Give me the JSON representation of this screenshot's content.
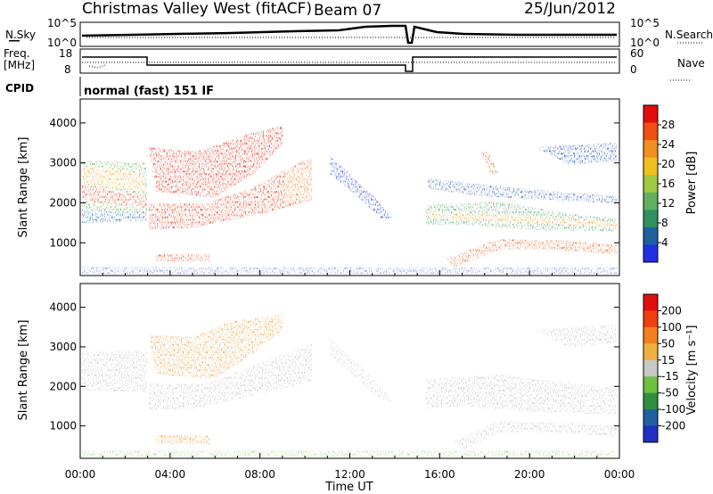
{
  "header": {
    "title": "Christmas Valley West (fitACF)",
    "beam": "Beam 07",
    "date": "25/Jun/2012"
  },
  "noise_panel": {
    "left_label": "N.Sky",
    "left_ticks": [
      "10^5",
      "10^0"
    ],
    "right_ticks": [
      "10^5",
      "10^0"
    ],
    "right_label": "N.Search"
  },
  "freq_panel": {
    "left_label_1": "Freq.",
    "left_label_2": "[MHz]",
    "left_ticks": [
      "18",
      "8"
    ],
    "right_ticks": [
      "60",
      "0"
    ],
    "right_label": "Nave"
  },
  "cpid": {
    "label": "CPID",
    "value": "normal (fast) 151 IF"
  },
  "chart_data": [
    {
      "type": "heatmap",
      "name": "power",
      "ylabel": "Slant Range [km]",
      "ylim": [
        180,
        4600
      ],
      "yticks": [
        1000,
        2000,
        3000,
        4000
      ],
      "xlim": [
        0,
        24
      ],
      "xticks": [
        "00:00",
        "04:00",
        "08:00",
        "12:00",
        "16:00",
        "20:00",
        "00:00"
      ],
      "colorbar_label": "Power [dB]",
      "colorbar_ticks": [
        "28",
        "24",
        "20",
        "16",
        "12",
        "8",
        "4"
      ],
      "colors": [
        "#2030e0",
        "#2060a0",
        "#309060",
        "#60b060",
        "#a0c840",
        "#f0c020",
        "#f09020",
        "#f05010",
        "#e01010"
      ]
    },
    {
      "type": "heatmap",
      "name": "velocity",
      "ylabel": "Slant Range [km]",
      "ylim": [
        180,
        4600
      ],
      "yticks": [
        1000,
        2000,
        3000,
        4000
      ],
      "xlim": [
        0,
        24
      ],
      "xticks": [
        "00:00",
        "04:00",
        "08:00",
        "12:00",
        "16:00",
        "20:00",
        "00:00"
      ],
      "xlabel": "Time UT",
      "colorbar_label": "Velocity [m s⁻¹]",
      "colorbar_ticks": [
        "200",
        "100",
        "50",
        "15",
        "-15",
        "-50",
        "-100",
        "-200"
      ],
      "colors": [
        "#2030c0",
        "#2060a0",
        "#309040",
        "#70c040",
        "#c8c8c8",
        "#f0b040",
        "#f08020",
        "#f04010",
        "#e01010"
      ]
    }
  ]
}
